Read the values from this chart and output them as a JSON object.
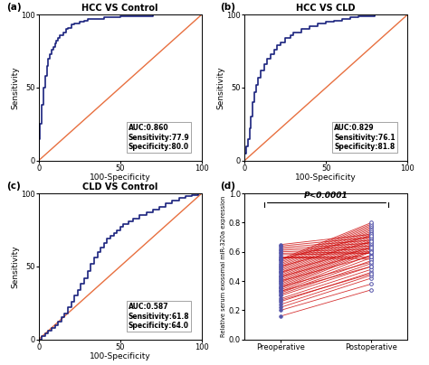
{
  "panel_a": {
    "title": "HCC VS Control",
    "auc": "AUC:0.860",
    "sensitivity": "Sensitivity:77.9",
    "specificity": "Specificity:80.0",
    "roc_x": [
      0,
      0,
      0,
      1,
      2,
      3,
      4,
      5,
      6,
      7,
      8,
      9,
      10,
      11,
      12,
      13,
      15,
      17,
      18,
      20,
      22,
      25,
      28,
      30,
      35,
      40,
      50,
      60,
      70,
      80,
      90,
      100
    ],
    "roc_y": [
      0,
      8,
      15,
      25,
      38,
      50,
      58,
      65,
      70,
      73,
      76,
      78,
      80,
      82,
      84,
      86,
      88,
      90,
      91,
      93,
      94,
      95,
      96,
      97,
      97,
      98,
      99,
      99,
      100,
      100,
      100,
      100
    ]
  },
  "panel_b": {
    "title": "HCC VS CLD",
    "auc": "AUC:0.829",
    "sensitivity": "Sensitivity:76.1",
    "specificity": "Specificity:81.8",
    "roc_x": [
      0,
      0,
      1,
      2,
      3,
      4,
      5,
      6,
      7,
      8,
      10,
      12,
      14,
      16,
      18,
      20,
      22,
      25,
      28,
      30,
      35,
      40,
      45,
      50,
      55,
      60,
      65,
      70,
      80,
      90,
      100
    ],
    "roc_y": [
      0,
      5,
      10,
      15,
      22,
      30,
      40,
      47,
      52,
      57,
      62,
      66,
      70,
      73,
      76,
      79,
      81,
      84,
      86,
      88,
      90,
      92,
      94,
      95,
      96,
      97,
      98,
      99,
      100,
      100,
      100
    ]
  },
  "panel_c": {
    "title": "CLD VS Control",
    "auc": "AUC:0.587",
    "sensitivity": "Sensitivity:61.8",
    "specificity": "Specificity:64.0",
    "roc_x": [
      0,
      2,
      4,
      6,
      8,
      10,
      12,
      14,
      16,
      18,
      20,
      22,
      24,
      26,
      28,
      30,
      32,
      34,
      36,
      38,
      40,
      42,
      44,
      46,
      48,
      50,
      52,
      55,
      58,
      62,
      66,
      70,
      74,
      78,
      82,
      86,
      90,
      94,
      98,
      100
    ],
    "roc_y": [
      0,
      2,
      4,
      6,
      8,
      10,
      12,
      15,
      18,
      22,
      26,
      30,
      34,
      38,
      42,
      47,
      52,
      56,
      60,
      63,
      66,
      69,
      71,
      73,
      75,
      77,
      79,
      81,
      83,
      85,
      87,
      89,
      91,
      93,
      95,
      97,
      98,
      99,
      100,
      100
    ]
  },
  "panel_d": {
    "xlabel_left": "Preoperative",
    "xlabel_right": "Postoperative",
    "ylabel": "Relative serum exosomal miR-320a expression",
    "pvalue": "P<0.0001",
    "pre_values": [
      0.16,
      0.2,
      0.22,
      0.24,
      0.26,
      0.28,
      0.3,
      0.31,
      0.32,
      0.33,
      0.34,
      0.35,
      0.36,
      0.37,
      0.38,
      0.39,
      0.4,
      0.41,
      0.42,
      0.43,
      0.44,
      0.45,
      0.46,
      0.47,
      0.48,
      0.49,
      0.5,
      0.51,
      0.52,
      0.53,
      0.54,
      0.55,
      0.56,
      0.57,
      0.58,
      0.59,
      0.6,
      0.61,
      0.62,
      0.63,
      0.64,
      0.65,
      0.27,
      0.33,
      0.36,
      0.4,
      0.43,
      0.46,
      0.5,
      0.55
    ],
    "post_values": [
      0.34,
      0.38,
      0.42,
      0.44,
      0.46,
      0.48,
      0.5,
      0.52,
      0.54,
      0.56,
      0.58,
      0.6,
      0.61,
      0.62,
      0.63,
      0.64,
      0.65,
      0.66,
      0.67,
      0.68,
      0.69,
      0.7,
      0.71,
      0.72,
      0.73,
      0.74,
      0.75,
      0.76,
      0.77,
      0.78,
      0.79,
      0.8,
      0.55,
      0.57,
      0.59,
      0.6,
      0.62,
      0.64,
      0.66,
      0.68,
      0.7,
      0.72,
      0.45,
      0.5,
      0.53,
      0.57,
      0.6,
      0.63,
      0.67,
      0.71
    ],
    "line_color": "#CC0000",
    "dot_color": "#5555AA"
  },
  "roc_line_color": "#1a237e",
  "diag_line_color": "#E87040",
  "bg_color": "#ffffff",
  "ann_fontsize": 5.5
}
